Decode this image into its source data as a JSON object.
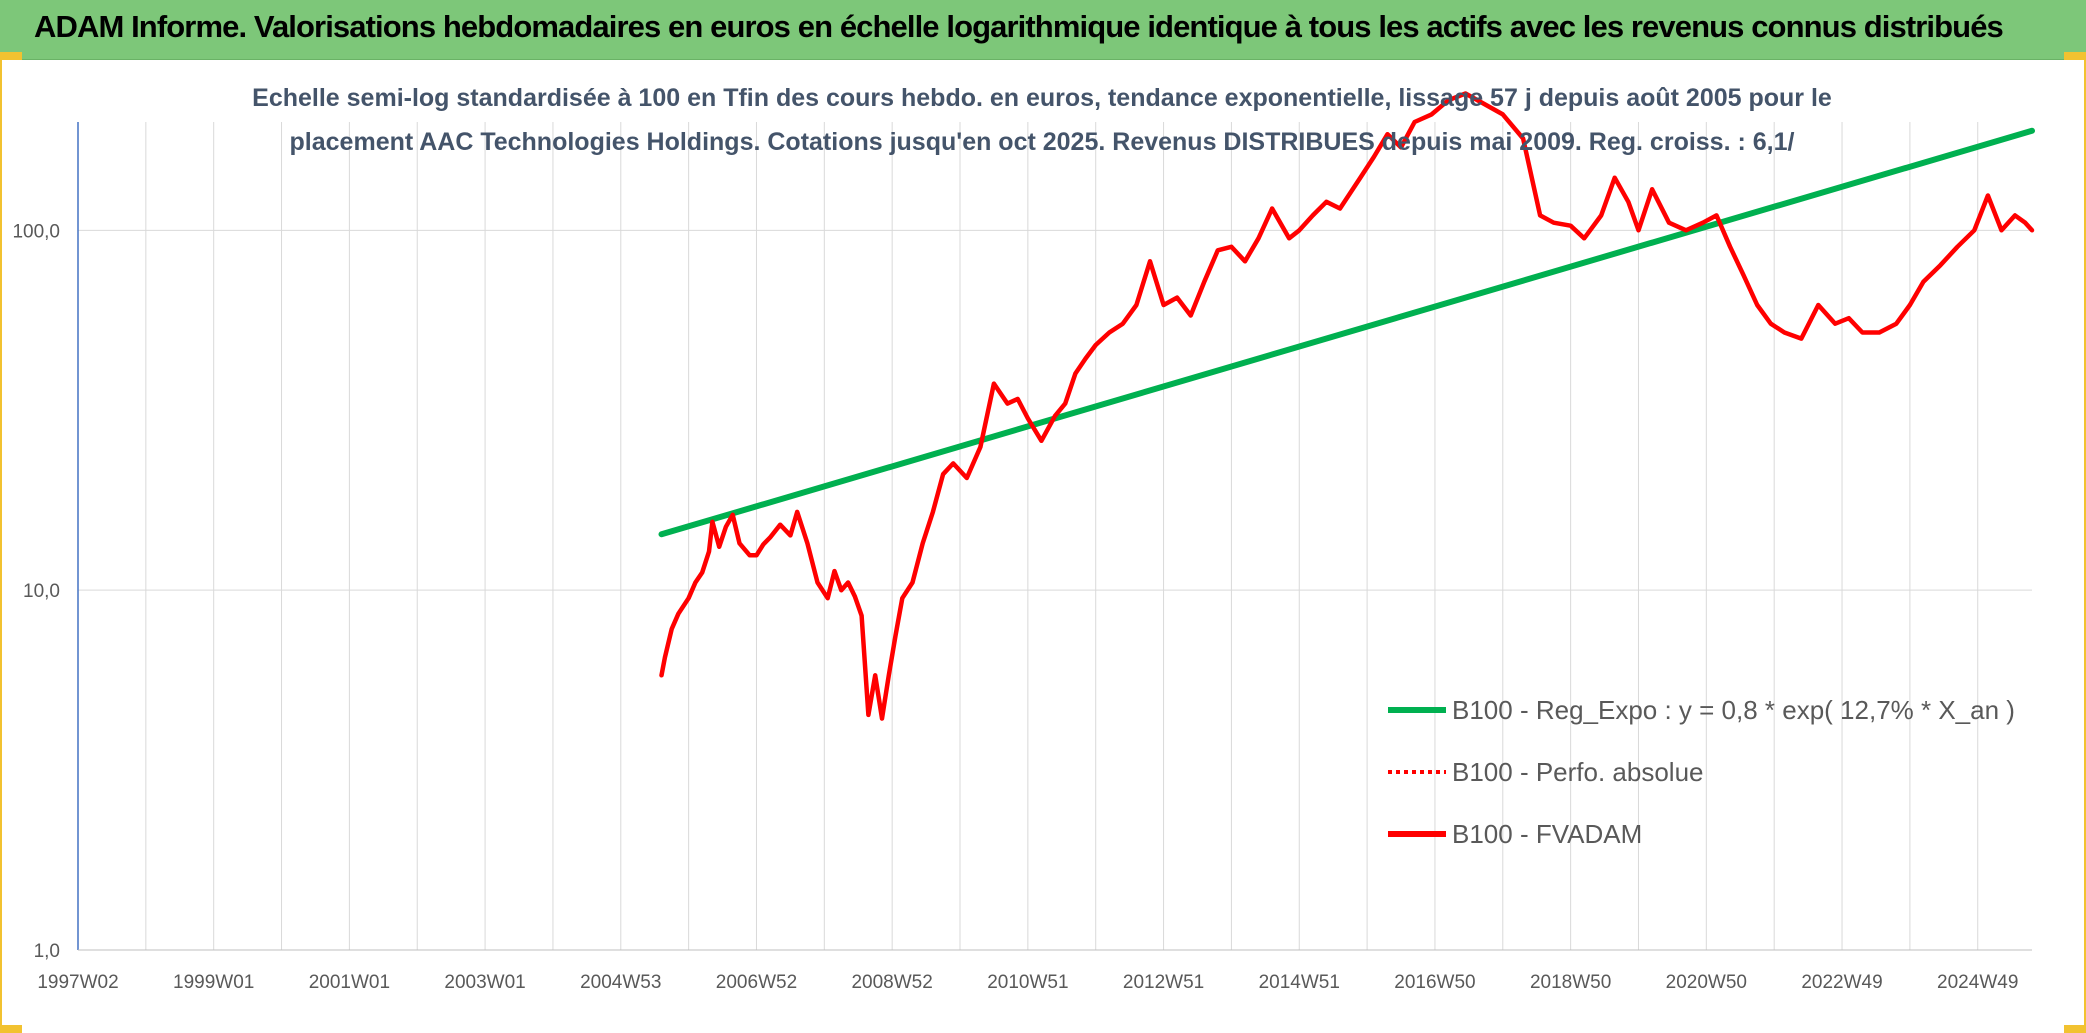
{
  "header": {
    "title": "ADAM Informe. Valorisations hebdomadaires en euros en échelle logarithmique identique à tous les actifs avec les revenus connus distribués"
  },
  "colors": {
    "header_bg": "#7dc779",
    "accent_gold": "#f2c230",
    "regression": "#00b050",
    "fvadam": "#ff0000",
    "perfo": "#ff0000",
    "grid": "#d9d9d9",
    "subtitle": "#44546a"
  },
  "chart_data": {
    "type": "line",
    "title_lines": [
      "Echelle semi-log standardisée à 100 en Tfin des cours hebdo. en euros, tendance exponentielle, lissage 57 j depuis août 2005 pour le",
      "placement AAC Technologies Holdings. Cotations jusqu'en oct 2025. Revenus DISTRIBUES depuis mai 2009. Reg. croiss. : 6,1/"
    ],
    "y_scale": "log",
    "ylim": [
      1,
      200
    ],
    "y_ticks": [
      {
        "value": 1,
        "label": "1,0"
      },
      {
        "value": 10,
        "label": "10,0"
      },
      {
        "value": 100,
        "label": "100,0"
      }
    ],
    "xlim": [
      1997.0,
      2025.8
    ],
    "x_ticks": [
      {
        "value": 1997.0,
        "label": "1997W02"
      },
      {
        "value": 1999.0,
        "label": "1999W01"
      },
      {
        "value": 2001.0,
        "label": "2001W01"
      },
      {
        "value": 2003.0,
        "label": "2003W01"
      },
      {
        "value": 2005.0,
        "label": "2004W53"
      },
      {
        "value": 2007.0,
        "label": "2006W52"
      },
      {
        "value": 2009.0,
        "label": "2008W52"
      },
      {
        "value": 2011.0,
        "label": "2010W51"
      },
      {
        "value": 2013.0,
        "label": "2012W51"
      },
      {
        "value": 2015.0,
        "label": "2014W51"
      },
      {
        "value": 2017.0,
        "label": "2016W50"
      },
      {
        "value": 2019.0,
        "label": "2018W50"
      },
      {
        "value": 2021.0,
        "label": "2020W50"
      },
      {
        "value": 2023.0,
        "label": "2022W49"
      },
      {
        "value": 2025.0,
        "label": "2024W49"
      }
    ],
    "legend_position": "right",
    "series": [
      {
        "name": "B100 - Reg_Expo : y = 0,8 * exp( 12,7% *  X_an )",
        "style": "solid",
        "color": "#00b050",
        "x": [
          2005.6,
          2025.8
        ],
        "y": [
          14.3,
          189
        ]
      },
      {
        "name": "B100 - Perfo. absolue",
        "style": "dotted",
        "color": "#ff0000",
        "x": [],
        "y": []
      },
      {
        "name": "B100 - FVADAM",
        "style": "solid",
        "color": "#ff0000",
        "x": [
          2005.6,
          2005.65,
          2005.75,
          2005.85,
          2006.0,
          2006.1,
          2006.2,
          2006.3,
          2006.35,
          2006.45,
          2006.55,
          2006.65,
          2006.75,
          2006.9,
          2007.0,
          2007.1,
          2007.2,
          2007.35,
          2007.5,
          2007.6,
          2007.75,
          2007.9,
          2008.05,
          2008.15,
          2008.25,
          2008.35,
          2008.45,
          2008.55,
          2008.65,
          2008.75,
          2008.85,
          2008.95,
          2009.05,
          2009.15,
          2009.3,
          2009.45,
          2009.6,
          2009.75,
          2009.9,
          2010.1,
          2010.3,
          2010.5,
          2010.7,
          2010.85,
          2011.0,
          2011.2,
          2011.4,
          2011.55,
          2011.7,
          2011.85,
          2012.0,
          2012.2,
          2012.4,
          2012.6,
          2012.8,
          2013.0,
          2013.2,
          2013.4,
          2013.6,
          2013.8,
          2014.0,
          2014.2,
          2014.4,
          2014.6,
          2014.85,
          2015.0,
          2015.2,
          2015.4,
          2015.6,
          2015.9,
          2016.1,
          2016.3,
          2016.5,
          2016.7,
          2016.95,
          2017.2,
          2017.45,
          2018.0,
          2018.3,
          2018.55,
          2018.75,
          2019.0,
          2019.2,
          2019.45,
          2019.65,
          2019.85,
          2020.0,
          2020.2,
          2020.45,
          2020.7,
          2020.95,
          2021.15,
          2021.35,
          2021.55,
          2021.75,
          2021.95,
          2022.15,
          2022.4,
          2022.65,
          2022.9,
          2023.1,
          2023.3,
          2023.55,
          2023.8,
          2024.0,
          2024.2,
          2024.45,
          2024.7,
          2024.95,
          2025.15,
          2025.35,
          2025.55,
          2025.7,
          2025.8
        ],
        "y": [
          5.8,
          6.5,
          7.8,
          8.6,
          9.5,
          10.5,
          11.2,
          12.8,
          15.5,
          13.2,
          15.0,
          16.2,
          13.5,
          12.5,
          12.5,
          13.4,
          14.0,
          15.2,
          14.2,
          16.5,
          13.5,
          10.5,
          9.5,
          11.3,
          10.0,
          10.5,
          9.6,
          8.5,
          4.5,
          5.8,
          4.4,
          5.8,
          7.5,
          9.5,
          10.5,
          13.5,
          16.5,
          21.0,
          22.5,
          20.5,
          25.0,
          37.5,
          33.0,
          34.0,
          30.0,
          26.0,
          30.5,
          33.0,
          40.0,
          44.0,
          48.0,
          52.0,
          55.0,
          62.0,
          82.0,
          62.0,
          65.0,
          58.0,
          72.0,
          88.0,
          90.0,
          82.0,
          95.0,
          115.0,
          95.0,
          100.0,
          110.0,
          120.0,
          115.0,
          140.0,
          160.0,
          185.0,
          170.0,
          200.0,
          210.0,
          230.0,
          240.0,
          210.0,
          180.0,
          110.0,
          105.0,
          103.0,
          95.0,
          110.0,
          140.0,
          120.0,
          100.0,
          130.0,
          105.0,
          100.0,
          105.0,
          110.0,
          90.0,
          75.0,
          62.0,
          55.0,
          52.0,
          50.0,
          62.0,
          55.0,
          57.0,
          52.0,
          52.0,
          55.0,
          62.0,
          72.0,
          80.0,
          90.0,
          100.0,
          125.0,
          100.0,
          110.0,
          105.0,
          100.0
        ]
      }
    ]
  }
}
